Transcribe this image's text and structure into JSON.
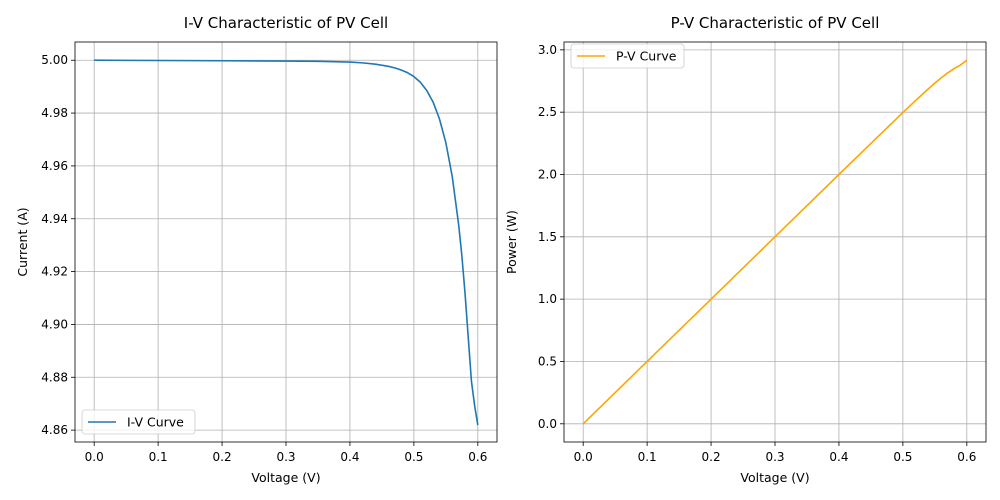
{
  "chart_data": [
    {
      "type": "line",
      "title": "I-V Characteristic of PV Cell",
      "xlabel": "Voltage (V)",
      "ylabel": "Current (A)",
      "xlim": [
        -0.03,
        0.63
      ],
      "ylim": [
        4.8555,
        5.0069
      ],
      "xticks": [
        0.0,
        0.1,
        0.2,
        0.3,
        0.4,
        0.5,
        0.6
      ],
      "xtick_labels": [
        "0.0",
        "0.1",
        "0.2",
        "0.3",
        "0.4",
        "0.5",
        "0.6"
      ],
      "yticks": [
        4.86,
        4.88,
        4.9,
        4.92,
        4.94,
        4.96,
        4.98,
        5.0
      ],
      "ytick_labels": [
        "4.86",
        "4.88",
        "4.90",
        "4.92",
        "4.94",
        "4.96",
        "4.98",
        "5.00"
      ],
      "grid": true,
      "legend": "lower-left",
      "series": [
        {
          "name": "I-V Curve",
          "color": "#1f77b4",
          "x": [
            0.0,
            0.1,
            0.2,
            0.3,
            0.35,
            0.4,
            0.42,
            0.44,
            0.46,
            0.47,
            0.48,
            0.49,
            0.5,
            0.51,
            0.52,
            0.53,
            0.54,
            0.55,
            0.56,
            0.57,
            0.575,
            0.58,
            0.585,
            0.59,
            0.595,
            0.6
          ],
          "y": [
            5.0,
            4.9999,
            4.9998,
            4.9997,
            4.9996,
            4.9993,
            4.999,
            4.9985,
            4.9977,
            4.9971,
            4.9963,
            4.9953,
            4.9938,
            4.9917,
            4.9886,
            4.9842,
            4.9778,
            4.9688,
            4.956,
            4.9378,
            4.9261,
            4.9118,
            4.8952,
            4.8786,
            4.8693,
            4.8619
          ]
        }
      ]
    },
    {
      "type": "line",
      "title": "P-V Characteristic of PV Cell",
      "xlabel": "Voltage (V)",
      "ylabel": "Power (W)",
      "xlim": [
        -0.03,
        0.63
      ],
      "ylim": [
        -0.146,
        3.063
      ],
      "xticks": [
        0.0,
        0.1,
        0.2,
        0.3,
        0.4,
        0.5,
        0.6
      ],
      "xtick_labels": [
        "0.0",
        "0.1",
        "0.2",
        "0.3",
        "0.4",
        "0.5",
        "0.6"
      ],
      "yticks": [
        0.0,
        0.5,
        1.0,
        1.5,
        2.0,
        2.5,
        3.0
      ],
      "ytick_labels": [
        "0.0",
        "0.5",
        "1.0",
        "1.5",
        "2.0",
        "2.5",
        "3.0"
      ],
      "grid": true,
      "legend": "upper-left",
      "series": [
        {
          "name": "P-V Curve",
          "color": "#ffa500",
          "x": [
            0.0,
            0.1,
            0.2,
            0.3,
            0.4,
            0.45,
            0.5,
            0.52,
            0.54,
            0.55,
            0.56,
            0.57,
            0.58,
            0.59,
            0.6
          ],
          "y": [
            0.0,
            0.5,
            1.0,
            1.5,
            2.0,
            2.249,
            2.497,
            2.594,
            2.688,
            2.733,
            2.775,
            2.815,
            2.849,
            2.878,
            2.917
          ]
        }
      ]
    }
  ]
}
